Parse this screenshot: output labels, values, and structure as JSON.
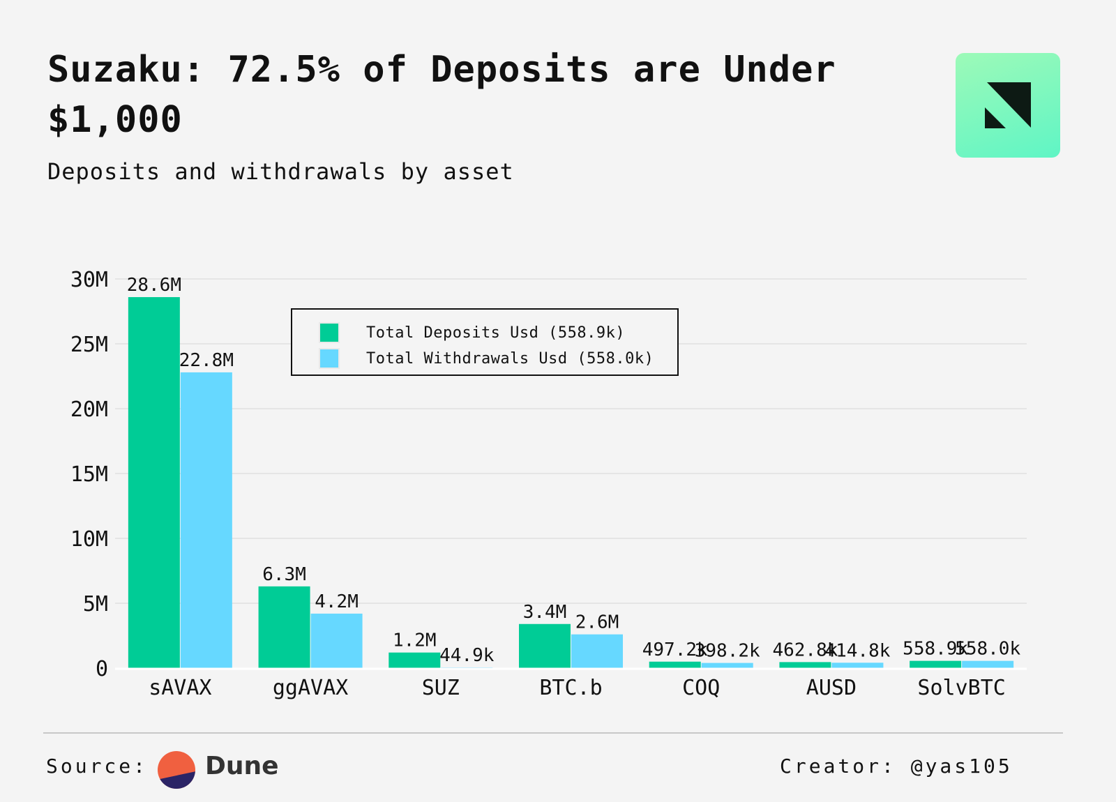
{
  "header": {
    "title": "Suzaku: 72.5% of Deposits are Under $1,000",
    "subtitle": "Deposits and withdrawals by asset"
  },
  "colors": {
    "deposits": "#00cc96",
    "withdrawals": "#66d8ff",
    "logo_bg": "#6ff7c0",
    "logo_mark": "#0d1a14"
  },
  "chart_data": {
    "type": "bar",
    "categories": [
      "sAVAX",
      "ggAVAX",
      "SUZ",
      "BTC.b",
      "COQ",
      "AUSD",
      "SolvBTC"
    ],
    "series": [
      {
        "name": "Total Deposits Usd (558.9k)",
        "values": [
          28600000,
          6300000,
          1200000,
          3400000,
          497200,
          462800,
          558900
        ],
        "labels": [
          "28.6M",
          "6.3M",
          "1.2M",
          "3.4M",
          "497.2k",
          "462.8k",
          "558.9k"
        ]
      },
      {
        "name": "Total Withdrawals Usd (558.0k)",
        "values": [
          22800000,
          4200000,
          44900,
          2600000,
          398200,
          414800,
          558000
        ],
        "labels": [
          "22.8M",
          "4.2M",
          "44.9k",
          "2.6M",
          "398.2k",
          "414.8k",
          "558.0k"
        ]
      }
    ],
    "ylim": [
      0,
      30000000
    ],
    "yticks": [
      0,
      5000000,
      10000000,
      15000000,
      20000000,
      25000000,
      30000000
    ],
    "ytick_labels": [
      "0",
      "5M",
      "10M",
      "15M",
      "20M",
      "25M",
      "30M"
    ],
    "xlabel": "",
    "ylabel": "",
    "grid": true,
    "legend_position": "top-center"
  },
  "footer": {
    "source_label": "Source:",
    "source_name": "Dune",
    "creator": "Creator: @yas105"
  },
  "icons": {
    "brand_logo": "angled-square-logo-icon",
    "source_logo": "dune-logo-icon"
  }
}
